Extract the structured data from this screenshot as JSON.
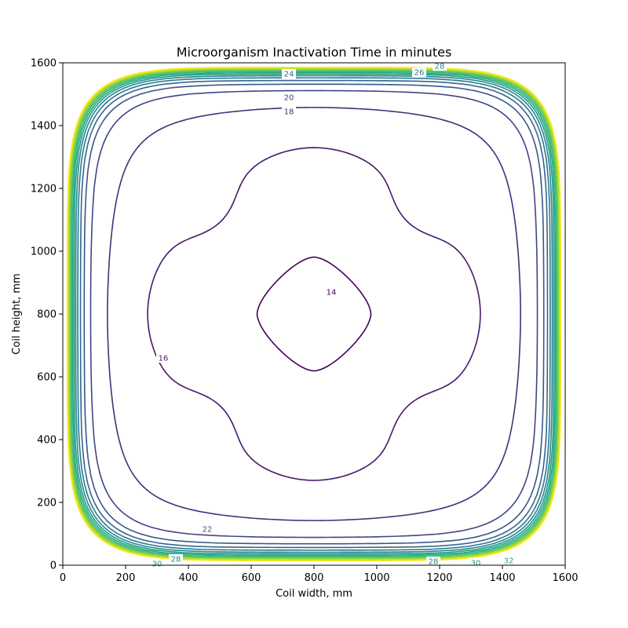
{
  "chart_data": {
    "type": "contour",
    "title": "Microorganism Inactivation Time in minutes",
    "xlabel": "Coil width, mm",
    "ylabel": "Coil height, mm",
    "xlim": [
      0,
      1600
    ],
    "ylim": [
      0,
      1600
    ],
    "xticks": [
      "0",
      "200",
      "400",
      "600",
      "800",
      "1000",
      "1200",
      "1400",
      "1600"
    ],
    "yticks": [
      "0",
      "200",
      "400",
      "600",
      "800",
      "1000",
      "1200",
      "1400",
      "1600"
    ],
    "levels": [
      14,
      16,
      18,
      20,
      22,
      24,
      26,
      28,
      30,
      32,
      34,
      36,
      38,
      40,
      42,
      44
    ],
    "colormap": "viridis",
    "grid": false,
    "contour_labels": [
      {
        "text": "14",
        "x": 855,
        "y": 870
      },
      {
        "text": "16",
        "x": 320,
        "y": 660
      },
      {
        "text": "18",
        "x": 720,
        "y": 1445
      },
      {
        "text": "20",
        "x": 720,
        "y": 1490
      },
      {
        "text": "22",
        "x": 460,
        "y": 115
      },
      {
        "text": "24",
        "x": 720,
        "y": 1565
      },
      {
        "text": "26",
        "x": 1135,
        "y": 1570
      },
      {
        "text": "28",
        "x": 1200,
        "y": 1590
      },
      {
        "text": "28",
        "x": 360,
        "y": 20
      },
      {
        "text": "28",
        "x": 1180,
        "y": 12
      },
      {
        "text": "30",
        "x": 300,
        "y": 5
      },
      {
        "text": "30",
        "x": 1315,
        "y": 8
      },
      {
        "text": "32",
        "x": 1420,
        "y": 15
      }
    ]
  }
}
